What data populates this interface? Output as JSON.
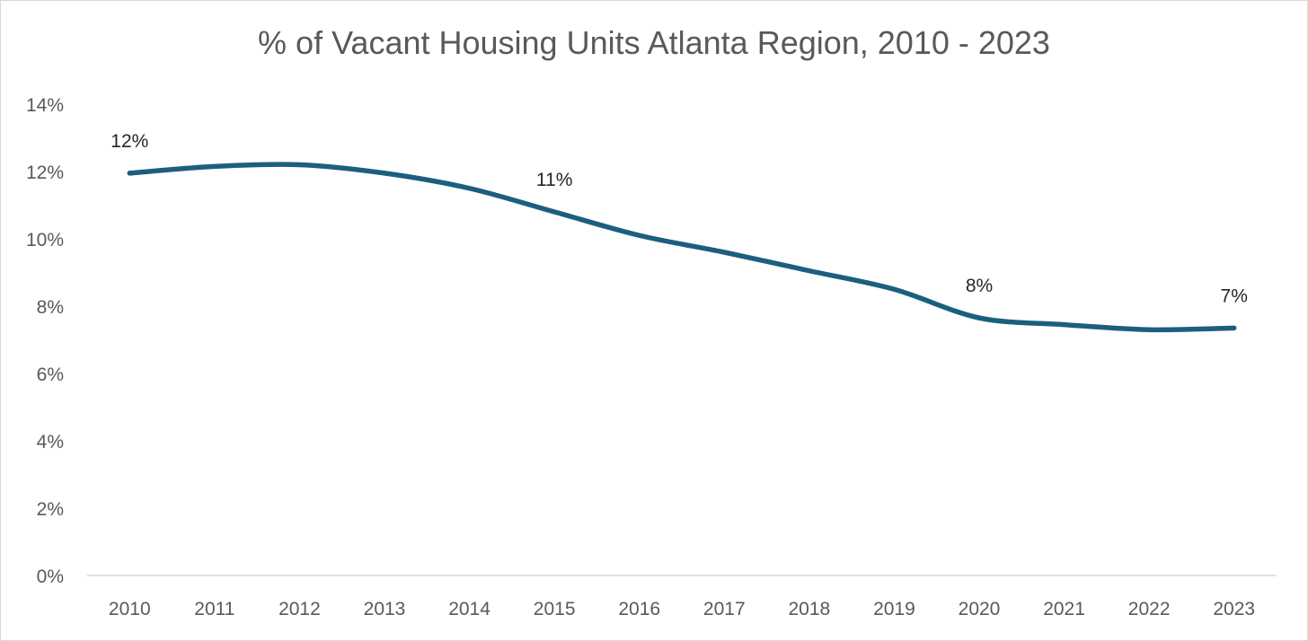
{
  "chart_data": {
    "type": "line",
    "title": "% of Vacant Housing Units Atlanta Region, 2010 - 2023",
    "xlabel": "",
    "ylabel": "",
    "categories": [
      "2010",
      "2011",
      "2012",
      "2013",
      "2014",
      "2015",
      "2016",
      "2017",
      "2018",
      "2019",
      "2020",
      "2021",
      "2022",
      "2023"
    ],
    "series": [
      {
        "values": [
          11.95,
          12.15,
          12.2,
          11.95,
          11.5,
          10.8,
          10.1,
          9.6,
          9.05,
          8.5,
          7.65,
          7.45,
          7.3,
          7.35
        ]
      }
    ],
    "y_ticks": [
      "0%",
      "2%",
      "4%",
      "6%",
      "8%",
      "10%",
      "12%",
      "14%"
    ],
    "ylim": [
      0,
      14
    ],
    "data_labels": [
      {
        "index": 0,
        "text": "12%"
      },
      {
        "index": 5,
        "text": "11%"
      },
      {
        "index": 10,
        "text": "8%"
      },
      {
        "index": 13,
        "text": "7%"
      }
    ],
    "grid": false,
    "legend": "none",
    "line_color": "#1b5f7f",
    "axis_color": "#d9d9d9",
    "text_color": "#595959"
  }
}
